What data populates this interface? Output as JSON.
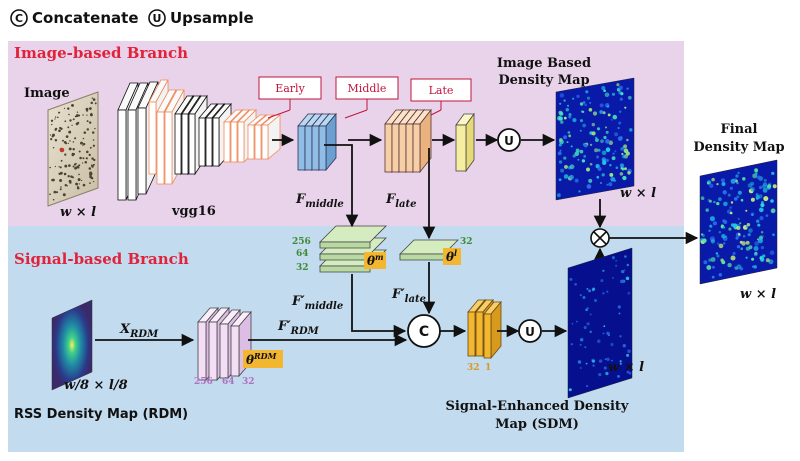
{
  "legend": {
    "concat_symbol": "C",
    "concat_label": "Concatenate",
    "upsample_symbol": "U",
    "upsample_label": "Upsample"
  },
  "branches": {
    "image": "Image-based Branch",
    "signal": "Signal-based Branch"
  },
  "image_branch": {
    "input_label": "Image",
    "input_size": "w × l",
    "backbone": "vgg16",
    "stages": [
      "Early",
      "Middle",
      "Late"
    ],
    "f_middle": "F",
    "f_middle_sub": "middle",
    "f_late": "F",
    "f_late_sub": "late",
    "output_title_1": "Image Based",
    "output_title_2": "Density Map",
    "output_size": "w × l"
  },
  "signal_branch": {
    "input_size": "w/8 × l/8",
    "input_caption": "RSS Density Map (RDM)",
    "x_rdm": "X",
    "x_rdm_sub": "RDM",
    "f_rdm": "F′",
    "f_rdm_sub": "RDM",
    "theta_rdm": "θ",
    "theta_rdm_sup": "RDM",
    "rdm_channels": [
      "256",
      "64",
      "32"
    ],
    "theta_m": "θ",
    "theta_m_sup": "m",
    "theta_m_channels": [
      "256",
      "64",
      "32"
    ],
    "theta_l": "θ",
    "theta_l_sup": "l",
    "theta_l_channels": [
      "32"
    ],
    "f_middle_prime": "F′",
    "f_middle_prime_sub": "middle",
    "f_late_prime": "F′",
    "f_late_prime_sub": "late",
    "sdm_channels": [
      "32",
      "1"
    ],
    "sdm_caption_1": "Signal-Enhanced Density",
    "sdm_caption_2": "Map (SDM)",
    "sdm_size": "w × l"
  },
  "final": {
    "title_1": "Final",
    "title_2": "Density Map",
    "size": "w × l"
  },
  "colors": {
    "image_bg": "#e9d3ea",
    "signal_bg": "#c2dbef",
    "branch_title": "#e0223a",
    "feature_blue": "#8fbde6",
    "feature_orange": "#f6cfa6",
    "feature_yellow": "#f5eea0",
    "feature_green": "#d4ecc0",
    "feature_pink": "#f3def6",
    "feature_gold": "#f2b630",
    "channel_green": "#3f8a35",
    "channel_purple": "#b070c0",
    "channel_gold": "#d69a20",
    "map_dark": "#07129a"
  }
}
